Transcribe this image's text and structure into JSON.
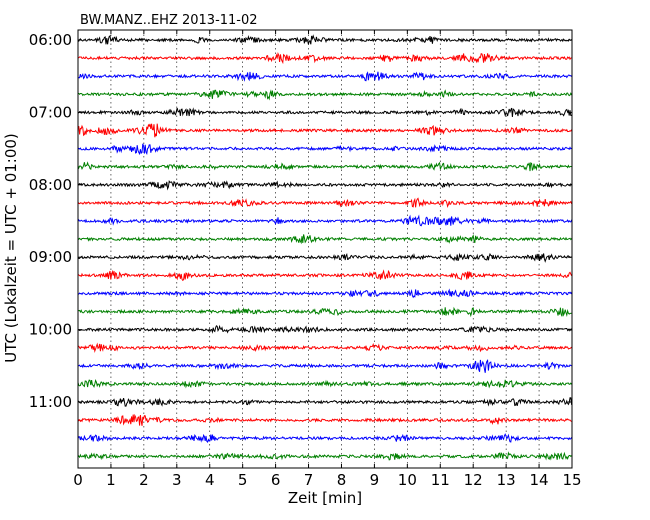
{
  "chart_data": {
    "type": "line",
    "title": "BW.MANZ..EHZ 2013-11-02",
    "xlabel": "Zeit  [min]",
    "ylabel": "UTC (Lokalzeit = UTC + 01:00)",
    "xlim": [
      0,
      15
    ],
    "x_ticks": [
      "0",
      "1",
      "2",
      "3",
      "4",
      "5",
      "6",
      "7",
      "8",
      "9",
      "10",
      "11",
      "12",
      "13",
      "14",
      "15"
    ],
    "y_ticks": [
      "06:00",
      "07:00",
      "08:00",
      "09:00",
      "10:00",
      "11:00"
    ],
    "grid": true,
    "trace_colors": [
      "#000000",
      "#ff0000",
      "#0000ff",
      "#008000"
    ],
    "series": [
      {
        "start": "06:00"
      },
      {
        "start": "06:15"
      },
      {
        "start": "06:30"
      },
      {
        "start": "06:45"
      },
      {
        "start": "07:00"
      },
      {
        "start": "07:15"
      },
      {
        "start": "07:30"
      },
      {
        "start": "07:45"
      },
      {
        "start": "08:00"
      },
      {
        "start": "08:15"
      },
      {
        "start": "08:30"
      },
      {
        "start": "08:45"
      },
      {
        "start": "09:00"
      },
      {
        "start": "09:15"
      },
      {
        "start": "09:30"
      },
      {
        "start": "09:45"
      },
      {
        "start": "10:00"
      },
      {
        "start": "10:15"
      },
      {
        "start": "10:30"
      },
      {
        "start": "10:45"
      },
      {
        "start": "11:00"
      },
      {
        "start": "11:15"
      },
      {
        "start": "11:30"
      },
      {
        "start": "11:45"
      }
    ]
  }
}
